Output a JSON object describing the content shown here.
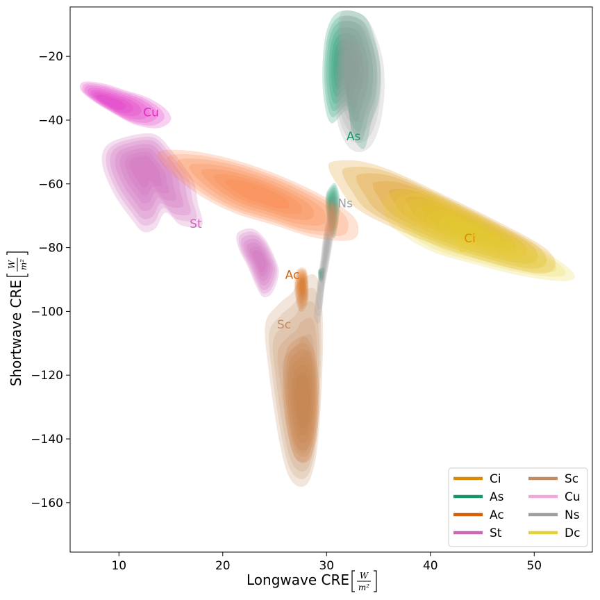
{
  "chart_data": {
    "type": "kde_contour",
    "xlabel": "Longwave CRE",
    "ylabel": "Shortwave CRE",
    "unit": {
      "numerator": "W",
      "denominator": "m²"
    },
    "xlim": [
      5.3,
      55.6
    ],
    "ylim": [
      -175.5,
      -4.5
    ],
    "xticks": [
      10,
      20,
      30,
      40,
      50
    ],
    "yticks": [
      -20,
      -40,
      -60,
      -80,
      -100,
      -120,
      -140,
      -160
    ],
    "grid": false,
    "legend": {
      "location": "lower-right",
      "columns": 2
    },
    "series": [
      {
        "name": "Ci",
        "color": "#d98c00",
        "center": [
          44.0,
          -77.0
        ],
        "label_pos": [
          43.8,
          -77.0
        ],
        "blobs": [
          {
            "points": [
              [
                30.6,
                -53
              ],
              [
                33.0,
                -52.8
              ],
              [
                36.0,
                -55.5
              ],
              [
                41.0,
                -63
              ],
              [
                46.0,
                -71
              ],
              [
                51.0,
                -80
              ],
              [
                52.0,
                -86
              ],
              [
                50.0,
                -88
              ],
              [
                44.0,
                -83
              ],
              [
                38.0,
                -76
              ],
              [
                33.0,
                -68
              ],
              [
                31.0,
                -60
              ],
              [
                30.2,
                -55
              ]
            ],
            "core": [
              43.5,
              -73
            ]
          }
        ]
      },
      {
        "name": "As",
        "color": "#12966b",
        "center": [
          32.6,
          -24.0
        ],
        "label_pos": [
          32.6,
          -45.0
        ],
        "blobs": [
          {
            "points": [
              [
                31.2,
                -6
              ],
              [
                33.5,
                -7
              ],
              [
                34.6,
                -14
              ],
              [
                35.2,
                -24
              ],
              [
                35.0,
                -34
              ],
              [
                34.3,
                -41
              ],
              [
                33.6,
                -49
              ],
              [
                32.5,
                -45
              ],
              [
                32.0,
                -37
              ],
              [
                30.5,
                -41
              ],
              [
                29.8,
                -35
              ],
              [
                29.6,
                -24
              ],
              [
                30.0,
                -12
              ]
            ],
            "core": [
              31.5,
              -22
            ]
          },
          {
            "points": [
              [
                30.3,
                -61
              ],
              [
                30.9,
                -60
              ],
              [
                31.3,
                -66
              ],
              [
                30.9,
                -76
              ],
              [
                30.4,
                -76
              ],
              [
                30.0,
                -70
              ],
              [
                29.9,
                -64
              ]
            ],
            "core": [
              30.5,
              -67
            ]
          },
          {
            "points": [
              [
                29.2,
                -87
              ],
              [
                29.8,
                -86.5
              ],
              [
                29.7,
                -90
              ],
              [
                29.3,
                -90.5
              ]
            ],
            "core": [
              29.5,
              -88.5
            ]
          }
        ]
      },
      {
        "name": "Ac",
        "color": "#d95f02",
        "center": [
          27.6,
          -128.0
        ],
        "label_pos": [
          26.7,
          -88.5
        ],
        "blobs": [
          {
            "points": [
              [
                26.6,
                -110
              ],
              [
                28.0,
                -108
              ],
              [
                29.0,
                -115
              ],
              [
                29.3,
                -128
              ],
              [
                29.0,
                -140
              ],
              [
                28.2,
                -147
              ],
              [
                27.0,
                -146
              ],
              [
                26.2,
                -137
              ],
              [
                25.8,
                -124
              ],
              [
                26.0,
                -114
              ]
            ],
            "core": [
              27.8,
              -128
            ]
          },
          {
            "points": [
              [
                27.2,
                -87
              ],
              [
                28.1,
                -87.5
              ],
              [
                28.2,
                -97
              ],
              [
                27.4,
                -100
              ],
              [
                26.9,
                -93
              ]
            ],
            "core": [
              27.7,
              -92
            ]
          }
        ]
      },
      {
        "name": "St",
        "color": "#cc66b8",
        "center": [
          12.8,
          -57.0
        ],
        "label_pos": [
          17.4,
          -72.5
        ],
        "blobs": [
          {
            "points": [
              [
                11.0,
                -45
              ],
              [
                13.5,
                -44.5
              ],
              [
                15.2,
                -50
              ],
              [
                16.6,
                -56
              ],
              [
                17.3,
                -60
              ],
              [
                17.6,
                -66
              ],
              [
                18.0,
                -73
              ],
              [
                16.0,
                -73
              ],
              [
                14.5,
                -69
              ],
              [
                13.5,
                -74
              ],
              [
                12.3,
                -75
              ],
              [
                11.2,
                -71
              ],
              [
                9.5,
                -63
              ],
              [
                8.4,
                -54
              ],
              [
                8.8,
                -48
              ]
            ],
            "core": [
              12.3,
              -54.5
            ]
          },
          {
            "points": [
              [
                22.8,
                -74
              ],
              [
                24.0,
                -77
              ],
              [
                25.0,
                -83
              ],
              [
                25.4,
                -88
              ],
              [
                24.8,
                -94
              ],
              [
                23.9,
                -95.5
              ],
              [
                23.2,
                -92
              ],
              [
                22.4,
                -86
              ],
              [
                21.5,
                -80
              ],
              [
                21.4,
                -75.5
              ]
            ],
            "core": [
              23.6,
              -84
            ]
          }
        ]
      },
      {
        "name": "Sc",
        "color": "#c48b60",
        "center": [
          27.8,
          -130.0
        ],
        "label_pos": [
          25.9,
          -104.0
        ],
        "blobs": [
          {
            "points": [
              [
                27.5,
                -90
              ],
              [
                29.0,
                -89
              ],
              [
                29.6,
                -100
              ],
              [
                29.6,
                -118
              ],
              [
                29.2,
                -140
              ],
              [
                28.6,
                -151
              ],
              [
                27.7,
                -155
              ],
              [
                26.4,
                -152
              ],
              [
                25.4,
                -140
              ],
              [
                24.4,
                -118
              ],
              [
                24.1,
                -104
              ],
              [
                25.3,
                -98
              ],
              [
                26.7,
                -94
              ]
            ],
            "core": [
              27.9,
              -131
            ]
          }
        ]
      },
      {
        "name": "Cu",
        "color": "#e02dc2",
        "center": [
          9.6,
          -34.5
        ],
        "label_pos": [
          13.1,
          -37.5
        ],
        "blobs": [
          {
            "points": [
              [
                6.6,
                -28
              ],
              [
                8.5,
                -28.5
              ],
              [
                10.5,
                -30.5
              ],
              [
                12.8,
                -33
              ],
              [
                14.5,
                -36.5
              ],
              [
                15.0,
                -40
              ],
              [
                13.8,
                -42.5
              ],
              [
                11.6,
                -41.5
              ],
              [
                9.5,
                -38
              ],
              [
                7.5,
                -34
              ],
              [
                6.3,
                -30.5
              ]
            ],
            "core": [
              8.6,
              -34
            ]
          }
        ]
      },
      {
        "name": "Ns",
        "color": "#a0a0a0",
        "center": [
          31.8,
          -27.0
        ],
        "label_pos": [
          31.8,
          -66.0
        ],
        "blobs": [
          {
            "points": [
              [
                31.5,
                -6
              ],
              [
                33.8,
                -8
              ],
              [
                35.2,
                -18
              ],
              [
                35.6,
                -28
              ],
              [
                35.3,
                -39
              ],
              [
                34.5,
                -47
              ],
              [
                33.3,
                -50
              ],
              [
                32.0,
                -48
              ],
              [
                31.0,
                -40
              ],
              [
                30.8,
                -28
              ],
              [
                31.0,
                -15
              ]
            ],
            "core": [
              32.2,
              -22
            ]
          },
          {
            "points": [
              [
                30.6,
                -63
              ],
              [
                31.0,
                -66
              ],
              [
                30.8,
                -74
              ],
              [
                30.3,
                -84
              ],
              [
                29.8,
                -93
              ],
              [
                29.4,
                -103
              ],
              [
                28.8,
                -102
              ],
              [
                29.0,
                -94
              ],
              [
                29.4,
                -84
              ],
              [
                29.8,
                -74
              ]
            ],
            "core": [
              29.9,
              -82
            ]
          }
        ]
      },
      {
        "name": "Dc",
        "color": "#e6d136",
        "center": [
          44.0,
          -79.0
        ],
        "label_pos": [
          43.5,
          -80.0
        ],
        "blobs": [
          {
            "points": [
              [
                36.0,
                -63
              ],
              [
                39.0,
                -61.5
              ],
              [
                43.0,
                -67
              ],
              [
                47.0,
                -73.5
              ],
              [
                51.0,
                -81
              ],
              [
                53.8,
                -88
              ],
              [
                53.0,
                -90.5
              ],
              [
                49.0,
                -89
              ],
              [
                44.0,
                -85
              ],
              [
                40.0,
                -81
              ],
              [
                36.5,
                -74
              ],
              [
                35.5,
                -68
              ]
            ],
            "core": [
              45.0,
              -77
            ]
          }
        ]
      },
      {
        "name": "",
        "color": "#fa7b3b",
        "center": [
          23.3,
          -63.0
        ],
        "label_pos": null,
        "blobs": [
          {
            "points": [
              [
                13.8,
                -50
              ],
              [
                16.5,
                -49.5
              ],
              [
                20.0,
                -51.5
              ],
              [
                24.0,
                -55.5
              ],
              [
                28.0,
                -61
              ],
              [
                31.6,
                -67.5
              ],
              [
                33.0,
                -72.5
              ],
              [
                32.5,
                -77.5
              ],
              [
                29.0,
                -77
              ],
              [
                25.0,
                -73
              ],
              [
                21.0,
                -69
              ],
              [
                17.5,
                -63
              ],
              [
                14.5,
                -55
              ]
            ],
            "core": [
              23.3,
              -63
            ]
          }
        ]
      }
    ]
  },
  "legend": {
    "entries": [
      {
        "label": "Ci",
        "color": "#d98c00"
      },
      {
        "label": "As",
        "color": "#12966b"
      },
      {
        "label": "Ac",
        "color": "#d95f02"
      },
      {
        "label": "St",
        "color": "#cc66b8"
      },
      {
        "label": "Sc",
        "color": "#c48b60"
      },
      {
        "label": "Cu",
        "color": "#f0a8dc"
      },
      {
        "label": "Ns",
        "color": "#a0a0a0"
      },
      {
        "label": "Dc",
        "color": "#e6d136"
      }
    ]
  }
}
